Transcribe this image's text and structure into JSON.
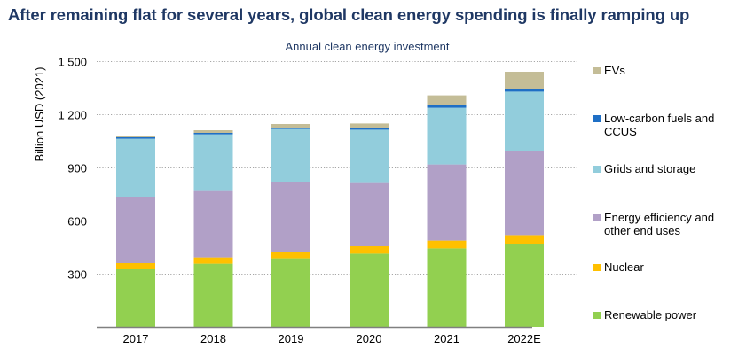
{
  "headline": "After remaining flat for several years, global clean energy spending is finally ramping up",
  "chart_data": {
    "type": "bar",
    "stacked": true,
    "title": "Annual clean energy investment",
    "xlabel": "",
    "ylabel": "Billion USD (2021)",
    "ylim": [
      0,
      1500
    ],
    "yticks": [
      300,
      600,
      900,
      1200,
      1500
    ],
    "ytick_labels": [
      "300",
      "600",
      "900",
      "1 200",
      "1 500"
    ],
    "grid": true,
    "legend_position": "right",
    "categories": [
      "2017",
      "2018",
      "2019",
      "2020",
      "2021",
      "2022E"
    ],
    "series": [
      {
        "name": "Renewable power",
        "color": "#92d050",
        "values": [
          325,
          357,
          387,
          413,
          443,
          468
        ]
      },
      {
        "name": "Nuclear",
        "color": "#ffc000",
        "values": [
          35,
          35,
          38,
          42,
          44,
          50
        ]
      },
      {
        "name": "Energy efficiency and other end uses",
        "color": "#b1a0c7",
        "values": [
          375,
          375,
          392,
          357,
          430,
          474
        ]
      },
      {
        "name": "Grids and storage",
        "color": "#92cddc",
        "values": [
          327,
          320,
          300,
          301,
          320,
          336
        ]
      },
      {
        "name": "Low-carbon fuels and CCUS",
        "color": "#1f6fc5",
        "values": [
          8,
          8,
          8,
          8,
          15,
          15
        ]
      },
      {
        "name": "EVs",
        "color": "#c4bd97",
        "values": [
          5,
          15,
          20,
          27,
          55,
          97
        ]
      }
    ]
  },
  "legend": [
    {
      "line1": "EVs",
      "line2": "",
      "color": "#c4bd97"
    },
    {
      "line1": "Low-carbon fuels and",
      "line2": "CCUS",
      "color": "#1f6fc5"
    },
    {
      "line1": "Grids and storage",
      "line2": "",
      "color": "#92cddc"
    },
    {
      "line1": "Energy efficiency and",
      "line2": "other end uses",
      "color": "#b1a0c7"
    },
    {
      "line1": "Nuclear",
      "line2": "",
      "color": "#ffc000"
    },
    {
      "line1": "Renewable power",
      "line2": "",
      "color": "#92d050"
    }
  ]
}
